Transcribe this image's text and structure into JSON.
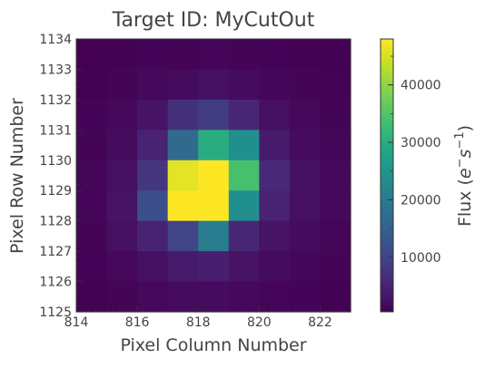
{
  "chart_data": {
    "type": "heatmap",
    "title": "Target ID: MyCutOut",
    "xlabel": "Pixel Column Number",
    "ylabel": "Pixel Row Number",
    "colorbar_label_prefix": "Flux (",
    "colorbar_label_e": "e",
    "colorbar_label_mid": "s",
    "colorbar_label_sup": "−1",
    "colorbar_label_suffix": ")",
    "xlim": [
      814,
      823
    ],
    "ylim": [
      1125,
      1134
    ],
    "x_ticks": [
      814,
      816,
      818,
      820,
      822
    ],
    "y_ticks": [
      1125,
      1126,
      1127,
      1128,
      1129,
      1130,
      1131,
      1132,
      1133,
      1134
    ],
    "colorbar_ticks": [
      10000,
      20000,
      30000,
      40000
    ],
    "vmin": 500,
    "vmax": 48000,
    "colormap": "viridis",
    "rows_top_to_bottom": [
      [
        500,
        700,
        900,
        1000,
        1100,
        1000,
        800,
        700,
        600
      ],
      [
        700,
        1000,
        1600,
        2000,
        2500,
        1900,
        1300,
        1000,
        800
      ],
      [
        900,
        1500,
        3000,
        7000,
        9000,
        5500,
        2500,
        1500,
        1000
      ],
      [
        1000,
        2000,
        5000,
        17000,
        30000,
        24000,
        4000,
        2000,
        1200
      ],
      [
        1200,
        2500,
        8000,
        46000,
        48000,
        34000,
        6000,
        2500,
        1400
      ],
      [
        1200,
        3000,
        12000,
        48000,
        48000,
        24000,
        5000,
        2500,
        1400
      ],
      [
        1000,
        2500,
        5000,
        10000,
        20000,
        5500,
        3000,
        1800,
        1100
      ],
      [
        800,
        1500,
        2500,
        4000,
        4500,
        3000,
        2000,
        1300,
        900
      ],
      [
        600,
        1000,
        1400,
        1800,
        1900,
        1500,
        1200,
        900,
        700
      ]
    ]
  }
}
